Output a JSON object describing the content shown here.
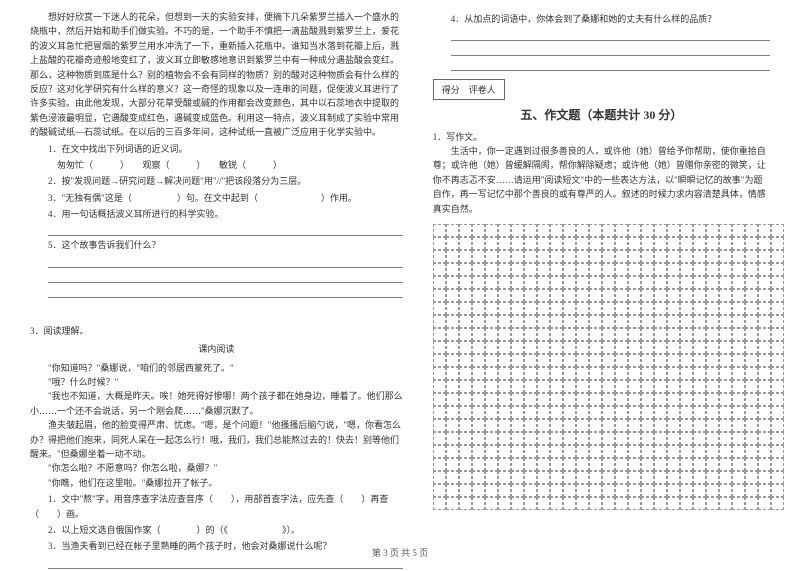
{
  "left": {
    "p1": "想好好欣赏一下迷人的花朵，但想到一天的实验安排，便摘下几朵紫罗兰插入一个盛水的烧瓶中，然后开始和助手们做实验。不巧的是，一个助手不慎把一滴盐酸溅到紫罗兰上，爱花的波义耳急忙把冒烟的紫罗兰用水冲洗了一下，重新插入花瓶中。谁知当水落到花瓣上后，溅上盐酸的花瓣奇迹般地变红了，波义耳立即敏感地意识到紫罗兰中有一种成分遇盐酸会变红。那么，这种物质到底是什么？别的植物会不会有同样的物质？别的酸对这种物质会有什么样的反应？这对化学研究有什么样的意义？这一奇怪的现象以及一连串的问题，促使波义耳进行了许多实验。由此他发现，大部分花草受酸或碱的作用都会改变颜色，其中以石蕊地衣中提取的紫色浸液最明显，它遇酸变成红色，遇碱变成蓝色。利用这一特点，波义耳制成了实验中常用的酸碱试纸—石蕊试纸。在以后的三百多年间，这种试纸一直被广泛应用于化学实验中。",
    "q1": "1．在文中找出下列词语的近义词。",
    "q1a": "匆匆忙（　　　）　　观察（　　　）　　敏锐（　　　）",
    "q2": "2．按\"发现问题→研究问题→解决问题\"用\"//\"把该段落分为三层。",
    "q3": "3．\"无独有偶\"这是（　　　　　）句。在文中起到（　　　　　　　）作用。",
    "q4": "4．用一句话概括波义耳所进行的科学实验。",
    "q5": "5．这个故事告诉我们什么？",
    "sec3": "3．阅读理解。",
    "sec3_title": "课内阅读",
    "r1": "\"你知道吗？\"桑娜说，\"咱们的邻居西蒙死了。\"",
    "r2": "\"哦？什么时候？\"",
    "r3": "\"我也不知道，大概是昨天。唉！她死得好惨哪！两个孩子都在她身边，睡着了。他们那么小……一个还不会说话，另一个刚会爬……\"桑娜沉默了。",
    "r4": "渔夫皱起眉，他的脸变得严肃、忧虑。\"嗯，是个问题！\"他搔搔后脑勺说，\"嗯，你看怎么办？得把他们抱来，同死人呆在一起怎么行！哦，我们，我们总能熬过去的！快去！别等他们醒来。\"但桑娜坐着一动不动。",
    "r5": "\"你怎么啦？不愿意吗？你怎么啦，桑娜？\"",
    "r6": "\"你瞧，他们在这里啦。\"桑娜拉开了帐子。",
    "rq1": "1．文中\"熬\"字，用音序查字法应查音序（　　），用部首查字法，应先查（　　）再查（　　）画。",
    "rq2": "2．以上短文选自俄国作家（　　　　）的（《　　　　　　》）。",
    "rq3": "3．当渔夫看到已经在帐子里熟睡的两个孩子时，他会对桑娜说什么呢？"
  },
  "right": {
    "q4": "4．从加点的词语中，你体会到了桑娜和她的丈夫有什么样的品质？",
    "score": "得分　评卷人",
    "section5": "五、作文题（本题共计 30 分）",
    "w1": "1．写作文。",
    "w1_text": "生活中，你一定遇到过很多善良的人，或许他（她）曾给予你帮助，使你重拾自尊；或许他（她）曾缓解隔阂，帮你解除疑虑；或许他（她）曾赠你亲密的微笑，让你不再志忑不安……请运用\"阅读短文\"中的一些表达方法，以\"瞬瞬记忆的故事\"为题自作，再一写记忆中那个善良的或有尊严的人。叙述的时候力求内容清楚具体，情感真实自然。"
  },
  "footer": "第 3 页 共 5 页",
  "grid": {
    "rows": 22,
    "cols": 27
  }
}
